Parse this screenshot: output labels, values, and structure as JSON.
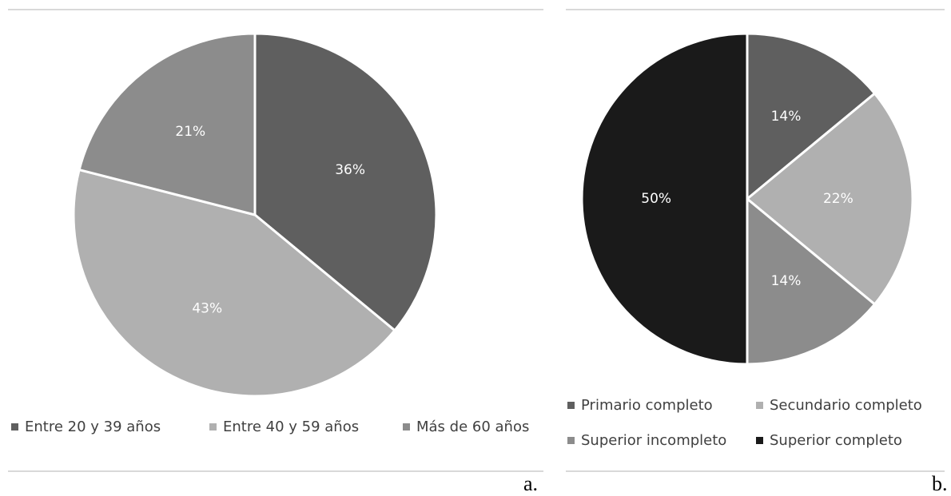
{
  "panels": {
    "a": {
      "letter": "a."
    },
    "b": {
      "letter": "b."
    }
  },
  "chart_data": [
    {
      "type": "pie",
      "title": "",
      "slices": [
        {
          "label": "Entre 20 y 39 años",
          "value": 36,
          "display": "36%",
          "color": "#5f5f5f"
        },
        {
          "label": "Entre 40 y 59 años",
          "value": 43,
          "display": "43%",
          "color": "#b0b0b0"
        },
        {
          "label": "Más de 60 años",
          "value": 21,
          "display": "21%",
          "color": "#8c8c8c"
        }
      ],
      "start": "12 o'clock, clockwise",
      "legend": "bottom"
    },
    {
      "type": "pie",
      "title": "",
      "slices": [
        {
          "label": "Primario completo",
          "value": 14,
          "display": "14%",
          "color": "#5f5f5f"
        },
        {
          "label": "Secundario completo",
          "value": 22,
          "display": "22%",
          "color": "#b0b0b0"
        },
        {
          "label": "Superior incompleto",
          "value": 14,
          "display": "14%",
          "color": "#8c8c8c"
        },
        {
          "label": "Superior completo",
          "value": 50,
          "display": "50%",
          "color": "#1a1a1a"
        }
      ],
      "start": "12 o'clock, clockwise",
      "legend": "bottom"
    }
  ]
}
